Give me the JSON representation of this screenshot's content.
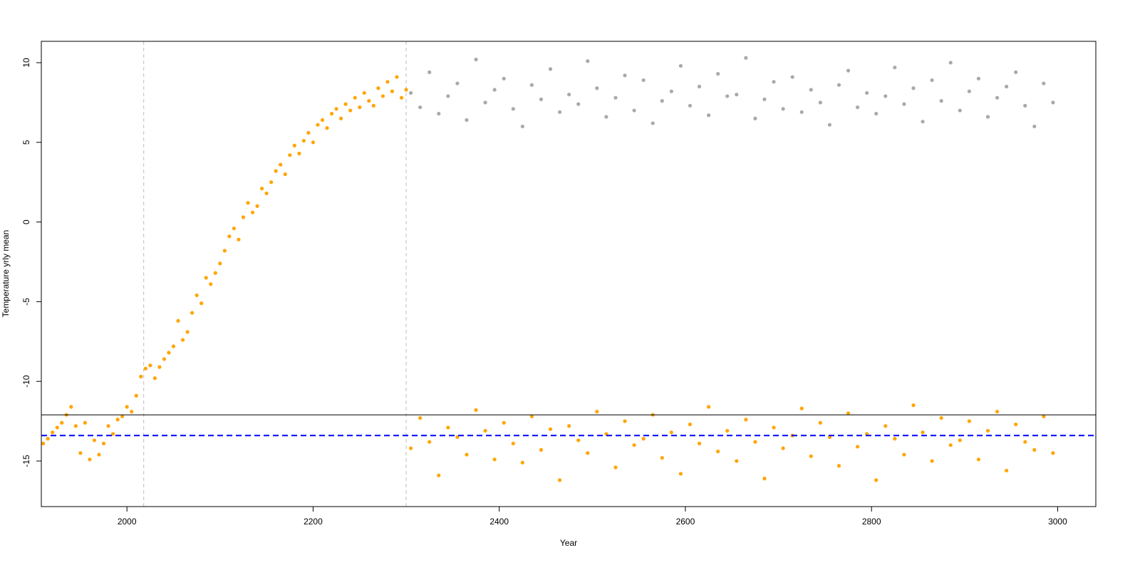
{
  "chart_data": {
    "type": "scatter",
    "x_label": "Year",
    "y_label": "Temperature yrly mean",
    "xlim": [
      1908,
      3041
    ],
    "ylim": [
      -17.86,
      11.34
    ],
    "xticks": [
      2000,
      2200,
      2400,
      2600,
      2800,
      3000
    ],
    "yticks": [
      -15,
      -10,
      -5,
      0,
      5,
      10
    ],
    "hlines": [
      {
        "value": -12.1,
        "color": "#000000",
        "dashed": false
      },
      {
        "value": -13.4,
        "color": "#0000ff",
        "dashed": true
      }
    ],
    "vlines": [
      {
        "value": 2018,
        "color": "#bebebe",
        "dashed": true
      },
      {
        "value": 2300,
        "color": "#bebebe",
        "dashed": true
      }
    ],
    "series": [
      {
        "color": "#ffa500",
        "x": [
          1910,
          1915,
          1920,
          1925,
          1930,
          1935,
          1940,
          1945,
          1950,
          1955,
          1960,
          1965,
          1970,
          1975,
          1980,
          1985,
          1990,
          1995,
          2000,
          2005,
          2010,
          2015,
          2020,
          2025,
          2030,
          2035,
          2040,
          2045,
          2050,
          2055,
          2060,
          2065,
          2070,
          2075,
          2080,
          2085,
          2090,
          2095,
          2100,
          2105,
          2110,
          2115,
          2120,
          2125,
          2130,
          2135,
          2140,
          2145,
          2150,
          2155,
          2160,
          2165,
          2170,
          2175,
          2180,
          2185,
          2190,
          2195,
          2200,
          2205,
          2210,
          2215,
          2220,
          2225,
          2230,
          2235,
          2240,
          2245,
          2250,
          2255,
          2260,
          2265,
          2270,
          2275,
          2280,
          2285,
          2290,
          2295,
          2300
        ],
        "values": [
          -13.9,
          -13.6,
          -13.2,
          -12.9,
          -12.6,
          -12.1,
          -11.6,
          -12.8,
          -14.5,
          -12.6,
          -14.9,
          -13.7,
          -14.6,
          -13.9,
          -12.8,
          -13.3,
          -12.4,
          -12.2,
          -11.6,
          -11.9,
          -10.9,
          -9.7,
          -9.2,
          -9.0,
          -9.8,
          -9.1,
          -8.6,
          -8.2,
          -7.8,
          -6.2,
          -7.4,
          -6.9,
          -5.7,
          -4.6,
          -5.1,
          -3.5,
          -3.9,
          -3.2,
          -2.6,
          -1.8,
          -0.9,
          -0.4,
          -1.1,
          0.3,
          1.2,
          0.6,
          1.0,
          2.1,
          1.8,
          2.5,
          3.2,
          3.6,
          3.0,
          4.2,
          4.8,
          4.3,
          5.1,
          5.6,
          5.0,
          6.1,
          6.4,
          5.9,
          6.8,
          7.1,
          6.5,
          7.4,
          7.0,
          7.8,
          7.2,
          8.1,
          7.6,
          7.3,
          8.4,
          7.9,
          8.8,
          8.2,
          9.1,
          7.8,
          8.3
        ]
      },
      {
        "color": "#ffa500",
        "x": [
          2305,
          2315,
          2325,
          2335,
          2345,
          2355,
          2365,
          2375,
          2385,
          2395,
          2405,
          2415,
          2425,
          2435,
          2445,
          2455,
          2465,
          2475,
          2485,
          2495,
          2505,
          2515,
          2525,
          2535,
          2545,
          2555,
          2565,
          2575,
          2585,
          2595,
          2605,
          2615,
          2625,
          2635,
          2645,
          2655,
          2665,
          2675,
          2685,
          2695,
          2705,
          2715,
          2725,
          2735,
          2745,
          2755,
          2765,
          2775,
          2785,
          2795,
          2805,
          2815,
          2825,
          2835,
          2845,
          2855,
          2865,
          2875,
          2885,
          2895,
          2905,
          2915,
          2925,
          2935,
          2945,
          2955,
          2965,
          2975,
          2985,
          2995
        ],
        "values": [
          -14.2,
          -12.3,
          -13.8,
          -15.9,
          -12.9,
          -13.5,
          -14.6,
          -11.8,
          -13.1,
          -14.9,
          -12.6,
          -13.9,
          -15.1,
          -12.2,
          -14.3,
          -13.0,
          -16.2,
          -12.8,
          -13.7,
          -14.5,
          -11.9,
          -13.3,
          -15.4,
          -12.5,
          -14.0,
          -13.6,
          -12.1,
          -14.8,
          -13.2,
          -15.8,
          -12.7,
          -13.9,
          -11.6,
          -14.4,
          -13.1,
          -15.0,
          -12.4,
          -13.8,
          -16.1,
          -12.9,
          -14.2,
          -13.4,
          -11.7,
          -14.7,
          -12.6,
          -13.5,
          -15.3,
          -12.0,
          -14.1,
          -13.3,
          -16.2,
          -12.8,
          -13.6,
          -14.6,
          -11.5,
          -13.2,
          -15.0,
          -12.3,
          -14.0,
          -13.7,
          -12.5,
          -14.9,
          -13.1,
          -11.9,
          -15.6,
          -12.7,
          -13.8,
          -14.3,
          -12.2,
          -14.5
        ]
      },
      {
        "color": "#a9a9a9",
        "x": [
          2305,
          2315,
          2325,
          2335,
          2345,
          2355,
          2365,
          2375,
          2385,
          2395,
          2405,
          2415,
          2425,
          2435,
          2445,
          2455,
          2465,
          2475,
          2485,
          2495,
          2505,
          2515,
          2525,
          2535,
          2545,
          2555,
          2565,
          2575,
          2585,
          2595,
          2605,
          2615,
          2625,
          2635,
          2645,
          2655,
          2665,
          2675,
          2685,
          2695,
          2705,
          2715,
          2725,
          2735,
          2745,
          2755,
          2765,
          2775,
          2785,
          2795,
          2805,
          2815,
          2825,
          2835,
          2845,
          2855,
          2865,
          2875,
          2885,
          2895,
          2905,
          2915,
          2925,
          2935,
          2945,
          2955,
          2965,
          2975,
          2985,
          2995
        ],
        "values": [
          8.1,
          7.2,
          9.4,
          6.8,
          7.9,
          8.7,
          6.4,
          10.2,
          7.5,
          8.3,
          9.0,
          7.1,
          6.0,
          8.6,
          7.7,
          9.6,
          6.9,
          8.0,
          7.4,
          10.1,
          8.4,
          6.6,
          7.8,
          9.2,
          7.0,
          8.9,
          6.2,
          7.6,
          8.2,
          9.8,
          7.3,
          8.5,
          6.7,
          9.3,
          7.9,
          8.0,
          10.3,
          6.5,
          7.7,
          8.8,
          7.1,
          9.1,
          6.9,
          8.3,
          7.5,
          6.1,
          8.6,
          9.5,
          7.2,
          8.1,
          6.8,
          7.9,
          9.7,
          7.4,
          8.4,
          6.3,
          8.9,
          7.6,
          10.0,
          7.0,
          8.2,
          9.0,
          6.6,
          7.8,
          8.5,
          9.4,
          7.3,
          6.0,
          8.7,
          7.5
        ]
      }
    ]
  }
}
